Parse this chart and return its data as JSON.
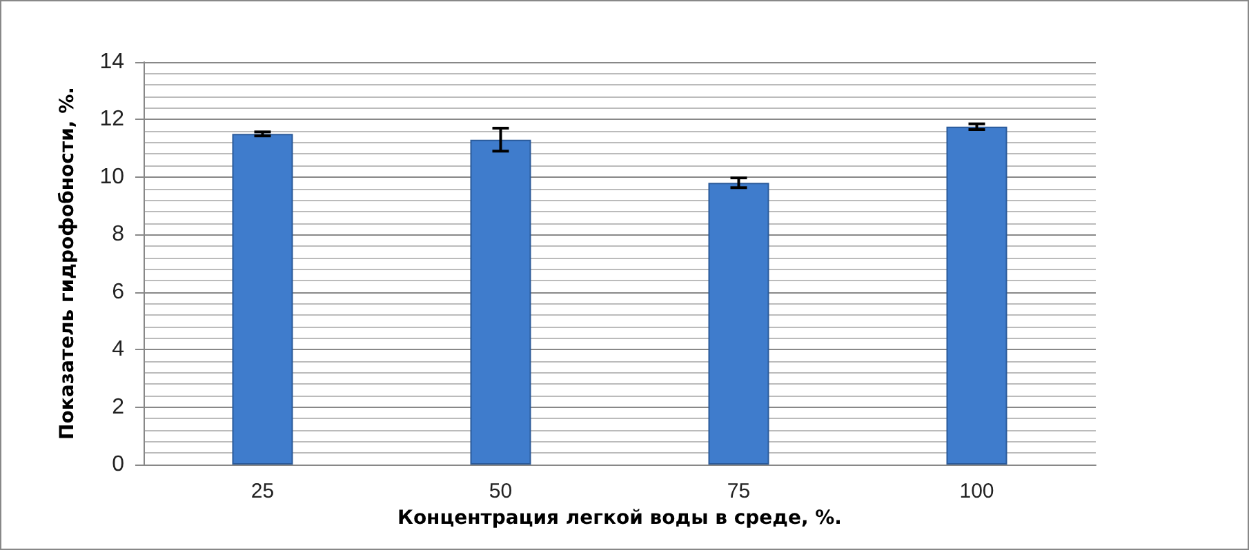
{
  "chart_data": {
    "type": "bar",
    "xlabel": "Концентрация легкой воды в среде, %.",
    "ylabel": "Показатель гидрофобности, %.",
    "categories": [
      "25",
      "50",
      "75",
      "100"
    ],
    "values": [
      11.5,
      11.3,
      9.8,
      11.75
    ],
    "errors": [
      0.07,
      0.4,
      0.17,
      0.1
    ],
    "color": "#3f7ccc",
    "ylim": [
      0,
      14
    ],
    "yticks": [
      0,
      2,
      4,
      6,
      8,
      10,
      12,
      14
    ],
    "grid": "y"
  }
}
